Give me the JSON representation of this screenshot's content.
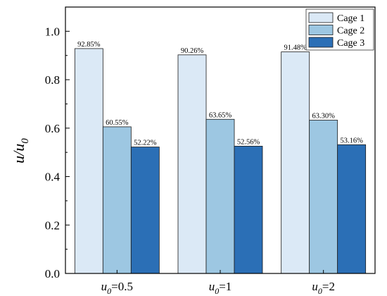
{
  "chart_data": {
    "type": "bar",
    "categories": [
      {
        "base": "u",
        "sub": "0",
        "rest": "=0.5"
      },
      {
        "base": "u",
        "sub": "0",
        "rest": "=1"
      },
      {
        "base": "u",
        "sub": "0",
        "rest": "=2"
      }
    ],
    "series": [
      {
        "name": "Cage 1",
        "color": "#dbe9f6",
        "values": [
          0.9285,
          0.9026,
          0.9148
        ],
        "labels": [
          "92.85%",
          "90.26%",
          "91.48%"
        ]
      },
      {
        "name": "Cage 2",
        "color": "#9dc7e2",
        "values": [
          0.6055,
          0.6365,
          0.633
        ],
        "labels": [
          "60.55%",
          "63.65%",
          "63.30%"
        ]
      },
      {
        "name": "Cage 3",
        "color": "#2b6fb6",
        "values": [
          0.5222,
          0.5256,
          0.5316
        ],
        "labels": [
          "52.22%",
          "52.56%",
          "53.16%"
        ]
      }
    ],
    "ylabel": {
      "base": "u/u",
      "sub": "0"
    },
    "xlabel": "",
    "title": "",
    "ylim": [
      0.0,
      1.1
    ],
    "yticks": [
      0.0,
      0.2,
      0.4,
      0.6,
      0.8,
      1.0
    ],
    "ytick_labels": [
      "0.0",
      "0.2",
      "0.4",
      "0.6",
      "0.8",
      "1.0"
    ],
    "legend_position": "top-right",
    "grid": false
  }
}
